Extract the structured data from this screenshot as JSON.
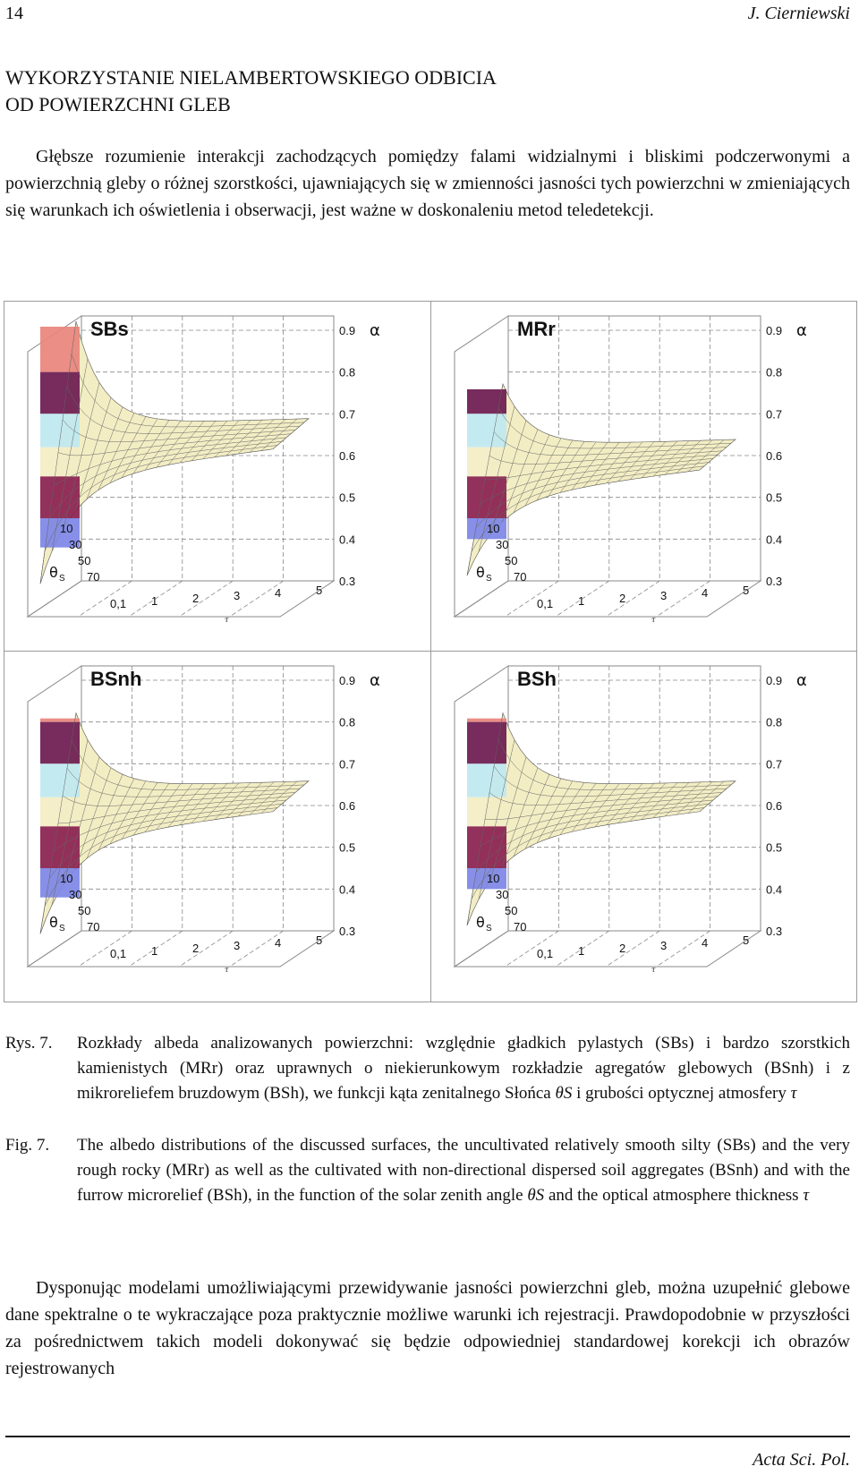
{
  "header": {
    "page_number": "14",
    "author": "J. Cierniewski"
  },
  "section_title": [
    "WYKORZYSTANIE NIELAMBERTOWSKIEGO ODBICIA",
    "OD POWIERZCHNI GLEB"
  ],
  "paragraph1": "Głębsze rozumienie interakcji zachodzących pomiędzy falami widzialnymi i bliskimi podczerwonymi a powierzchnią gleby o różnej szorstkości, ujawniających się w zmienności jasności tych powierzchni w zmieniających się warunkach ich oświetlenia i obserwacji, jest ważne w doskonaleniu metod teledetekcji.",
  "chart_data": [
    {
      "type": "surface",
      "title": "SBs",
      "zlabel": "α",
      "ylabel": "θS",
      "xlabel": "τ",
      "x_ticks": [
        "0,1",
        "1",
        "2",
        "3",
        "4",
        "5"
      ],
      "y_ticks": [
        "10",
        "30",
        "50",
        "70"
      ],
      "z_ticks": [
        "0.9",
        "0.8",
        "0.7",
        "0.6",
        "0.5",
        "0.4",
        "0.3"
      ],
      "zlim": [
        0.3,
        0.9
      ],
      "peak_alpha": 0.9,
      "plateau_alpha": 0.65,
      "min_alpha": 0.4
    },
    {
      "type": "surface",
      "title": "MRr",
      "zlabel": "α",
      "ylabel": "θS",
      "xlabel": "τ",
      "x_ticks": [
        "0,1",
        "1",
        "2",
        "3",
        "4",
        "5"
      ],
      "y_ticks": [
        "10",
        "30",
        "50",
        "70"
      ],
      "z_ticks": [
        "0.9",
        "0.8",
        "0.7",
        "0.6",
        "0.5",
        "0.4",
        "0.3"
      ],
      "zlim": [
        0.3,
        0.9
      ],
      "peak_alpha": 0.75,
      "plateau_alpha": 0.6,
      "min_alpha": 0.42
    },
    {
      "type": "surface",
      "title": "BSnh",
      "zlabel": "α",
      "ylabel": "θS",
      "xlabel": "τ",
      "x_ticks": [
        "0,1",
        "1",
        "2",
        "3",
        "4",
        "5"
      ],
      "y_ticks": [
        "10",
        "30",
        "50",
        "70"
      ],
      "z_ticks": [
        "0.9",
        "0.8",
        "0.7",
        "0.6",
        "0.5",
        "0.4",
        "0.3"
      ],
      "zlim": [
        0.3,
        0.9
      ],
      "peak_alpha": 0.8,
      "plateau_alpha": 0.62,
      "min_alpha": 0.4
    },
    {
      "type": "surface",
      "title": "BSh",
      "zlabel": "α",
      "ylabel": "θS",
      "xlabel": "τ",
      "x_ticks": [
        "0,1",
        "1",
        "2",
        "3",
        "4",
        "5"
      ],
      "y_ticks": [
        "10",
        "30",
        "50",
        "70"
      ],
      "z_ticks": [
        "0.9",
        "0.8",
        "0.7",
        "0.6",
        "0.5",
        "0.4",
        "0.3"
      ],
      "zlim": [
        0.3,
        0.9
      ],
      "peak_alpha": 0.8,
      "plateau_alpha": 0.62,
      "min_alpha": 0.42
    }
  ],
  "caption_pl": {
    "label": "Rys. 7.",
    "text": "Rozkłady albeda analizowanych powierzchni: względnie gładkich pylastych (SBs) i bardzo szorstkich kamienistych (MRr) oraz uprawnych o niekierunkowym rozkładzie agregatów glebowych (BSnh) i z mikroreliefem bruzdowym (BSh), we funkcji kąta zenitalnego Słońca",
    "sym1": "θS",
    "mid": "i grubości optycznej atmosfery",
    "sym2": "τ"
  },
  "caption_en": {
    "label": "Fig. 7.",
    "text": "The albedo distributions of the discussed surfaces, the uncultivated relatively smooth silty (SBs) and the very rough rocky (MRr) as well as the cultivated with non-directional dispersed soil aggregates (BSnh) and with the furrow microrelief (BSh), in the function of the solar zenith angle",
    "sym1": "θS",
    "mid": "and the optical atmosphere thickness",
    "sym2": "τ"
  },
  "paragraph2": "Dysponując modelami umożliwiającymi przewidywanie jasności powierzchni gleb, można uzupełnić glebowe dane spektralne o te wykraczające poza praktycznie możliwe warunki ich rejestracji. Prawdopodobnie w przyszłości za pośrednictwem takich modeli dokonywać się będzie odpowiedniej standardowej korekcji ich obrazów rejestrowanych",
  "footer": {
    "journal": "Acta Sci. Pol."
  },
  "colors": {
    "band_peak_top": "#e8847c",
    "band_high": "#6b1a4f",
    "band_mid": "#bfe8f0",
    "band_plateau": "#f3edc4",
    "band_low": "#8a1f4f",
    "band_min": "#7d86e6",
    "grid": "#888888"
  }
}
